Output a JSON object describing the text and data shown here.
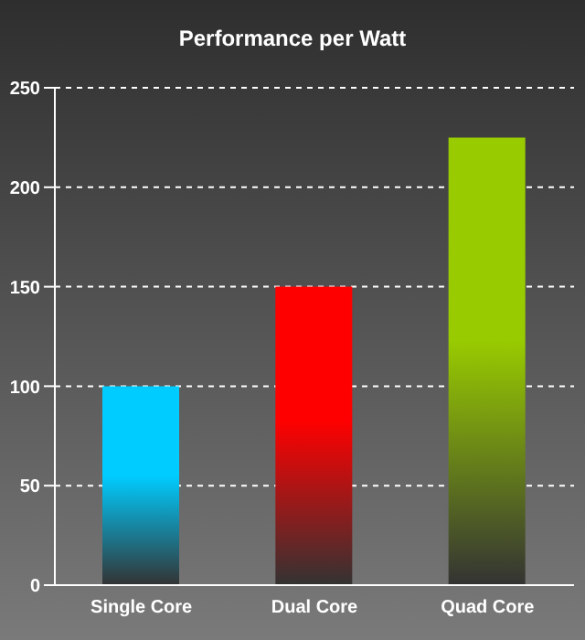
{
  "chart_data": {
    "type": "bar",
    "title": "Performance per Watt",
    "categories": [
      "Single Core",
      "Dual Core",
      "Quad Core"
    ],
    "values": [
      100,
      150,
      225
    ],
    "colors": [
      "#00ccff",
      "#ff0000",
      "#99cc00"
    ],
    "ylim": [
      0,
      250
    ],
    "yticks": [
      0,
      50,
      100,
      150,
      200,
      250
    ],
    "grid": "y",
    "legend": false
  }
}
